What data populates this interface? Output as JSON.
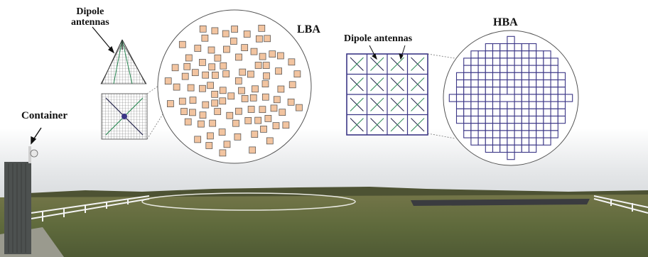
{
  "labels": {
    "dipole_left_line1": "Dipole",
    "dipole_left_line2": "antennas",
    "lba": "LBA",
    "hba": "HBA",
    "dipole_right": "Dipole antennas",
    "container": "Container"
  },
  "colors": {
    "tile_fill": "#f2c4a0",
    "tile_stroke": "#4a4a4a",
    "hba_grid": "#3b3686",
    "dipole_green": "#2e8b57",
    "dipole_dark": "#22224a",
    "sky": "#cdd0d3",
    "grass": "#6d7046",
    "fence": "#f2f2f2",
    "hba_field": "#3a3b3f"
  },
  "icons": [
    "container-arrow-icon",
    "dipole-pointer-arrows",
    "camera-icon"
  ]
}
